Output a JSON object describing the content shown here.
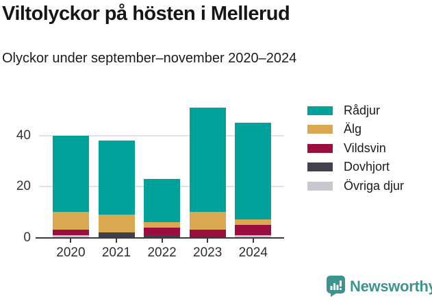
{
  "header": {
    "title": "Viltolyckor på hösten i Mellerud",
    "subtitle": "Olyckor under september–november 2020–2024"
  },
  "chart_data": {
    "type": "bar",
    "stacked": true,
    "title": "Viltolyckor på hösten i Mellerud",
    "subtitle": "Olyckor under september–november 2020–2024",
    "categories": [
      "2020",
      "2021",
      "2022",
      "2023",
      "2024"
    ],
    "series": [
      {
        "name": "Rådjur",
        "color": "#00a29b",
        "values": [
          30,
          29,
          17,
          41,
          38
        ]
      },
      {
        "name": "Älg",
        "color": "#d9a851",
        "values": [
          7,
          7,
          2,
          7,
          2
        ]
      },
      {
        "name": "Vildsvin",
        "color": "#9a0d3e",
        "values": [
          2,
          0,
          3,
          3,
          4
        ]
      },
      {
        "name": "Dovhjort",
        "color": "#41404e",
        "values": [
          0,
          2,
          1,
          0,
          0
        ]
      },
      {
        "name": "Övriga djur",
        "color": "#c8c6d3",
        "values": [
          1,
          0,
          0,
          0,
          1
        ]
      }
    ],
    "totals": [
      40,
      38,
      23,
      51,
      45
    ],
    "xlabel": "",
    "ylabel": "",
    "y_ticks": [
      0,
      20,
      40
    ],
    "ylim": [
      0,
      53
    ],
    "grid": "horizontal-at-20-and-40",
    "legend_position": "right",
    "stack_order_bottom_to_top": [
      "Övriga djur",
      "Dovhjort",
      "Vildsvin",
      "Älg",
      "Rådjur"
    ]
  },
  "style": {
    "axis_color": "#3a3a3a",
    "grid_color": "#e2e2e2",
    "text_color": "#1a1a1a",
    "background": "#ffffff"
  },
  "branding": {
    "name": "Newsworthy",
    "color": "#3d948e",
    "icon": "newsworthy-speech-bubble-bar-chart-icon"
  }
}
